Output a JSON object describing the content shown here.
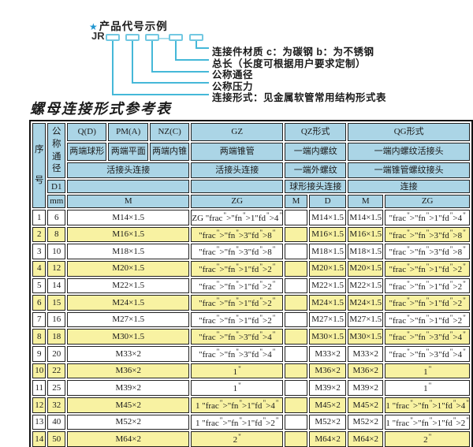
{
  "diagram": {
    "star": "★",
    "title": "产品代号示例",
    "prefix": "JR",
    "dash": "—",
    "labels": [
      "连接件材质  c：为碳钢  b：为不锈钢",
      "总长（长度可根据用户要求定制）",
      "公称通径",
      "公称压力",
      "连接形式：见金属软管常用结构形式表"
    ]
  },
  "table": {
    "title": "螺母连接形式参考表",
    "header": {
      "serial": "序号",
      "nominal_diameter": "公称通径",
      "d1": "D1",
      "mm": "mm",
      "groups": [
        "Q(D)",
        "PM(A)",
        "NZ(C)",
        "GZ",
        "QZ形式",
        "QG形式"
      ],
      "row2": [
        "两端球形",
        "两端平面",
        "两端内锥",
        "两端锥管",
        "一端内螺纹",
        "一端内螺纹活接头"
      ],
      "row3": [
        "活接头连接",
        "活接头连接",
        "一端外螺纹",
        "一端锥管螺纹接头"
      ],
      "row4": [
        "球形接头连接",
        "连接"
      ],
      "units": [
        "M",
        "ZG",
        "M",
        "D",
        "M",
        "ZG"
      ]
    },
    "rows": [
      {
        "no": "1",
        "dn": "6",
        "m": "M14×1.5",
        "zg": "ZG 1/4\"",
        "qz_m": "",
        "qz_d": "M14×1.5",
        "qg_m": "M14×1.5",
        "qg_zg": "1/4\""
      },
      {
        "no": "2",
        "dn": "8",
        "m": "M16×1.5",
        "zg": "3/8\"",
        "qz_m": "",
        "qz_d": "M16×1.5",
        "qg_m": "M16×1.5",
        "qg_zg": "3/8\""
      },
      {
        "no": "3",
        "dn": "10",
        "m": "M18×1.5",
        "zg": "3/8\"",
        "qz_m": "",
        "qz_d": "M18×1.5",
        "qg_m": "M18×1.5",
        "qg_zg": "3/8\""
      },
      {
        "no": "4",
        "dn": "12",
        "m": "M20×1.5",
        "zg": "1/2\"",
        "qz_m": "",
        "qz_d": "M20×1.5",
        "qg_m": "M20×1.5",
        "qg_zg": "1/2\""
      },
      {
        "no": "5",
        "dn": "14",
        "m": "M22×1.5",
        "zg": "1/2\"",
        "qz_m": "",
        "qz_d": "M22×1.5",
        "qg_m": "M22×1.5",
        "qg_zg": "1/2\""
      },
      {
        "no": "6",
        "dn": "15",
        "m": "M24×1.5",
        "zg": "1/2\"",
        "qz_m": "",
        "qz_d": "M24×1.5",
        "qg_m": "M24×1.5",
        "qg_zg": "1/2\""
      },
      {
        "no": "7",
        "dn": "16",
        "m": "M27×1.5",
        "zg": "1/2\"",
        "qz_m": "",
        "qz_d": "M27×1.5",
        "qg_m": "M27×1.5",
        "qg_zg": "1/2\""
      },
      {
        "no": "8",
        "dn": "18",
        "m": "M30×1.5",
        "zg": "3/4\"",
        "qz_m": "",
        "qz_d": "M30×1.5",
        "qg_m": "M30×1.5",
        "qg_zg": "3/4\""
      },
      {
        "no": "9",
        "dn": "20",
        "m": "M33×2",
        "zg": "3/4\"",
        "qz_m": "",
        "qz_d": "M33×2",
        "qg_m": "M33×2",
        "qg_zg": "3/4\""
      },
      {
        "no": "10",
        "dn": "22",
        "m": "M36×2",
        "zg": "1\"",
        "qz_m": "",
        "qz_d": "M36×2",
        "qg_m": "M36×2",
        "qg_zg": "1\""
      },
      {
        "no": "11",
        "dn": "25",
        "m": "M39×2",
        "zg": "1\"",
        "qz_m": "",
        "qz_d": "M39×2",
        "qg_m": "M39×2",
        "qg_zg": "1\""
      },
      {
        "no": "12",
        "dn": "32",
        "m": "M45×2",
        "zg": "1 1/4\"",
        "qz_m": "",
        "qz_d": "M45×2",
        "qg_m": "M45×2",
        "qg_zg": "1 1/4\""
      },
      {
        "no": "13",
        "dn": "40",
        "m": "M52×2",
        "zg": "1 1/2\"",
        "qz_m": "",
        "qz_d": "M52×2",
        "qg_m": "M52×2",
        "qg_zg": "1 1/2\""
      },
      {
        "no": "14",
        "dn": "50",
        "m": "M64×2",
        "zg": "2\"",
        "qz_m": "",
        "qz_d": "M64×2",
        "qg_m": "M64×2",
        "qg_zg": "2\""
      }
    ]
  },
  "colors": {
    "header_bg": "#abd5e6",
    "row_alt": "#f8f2a2",
    "diagram_line": "#45b8d8",
    "box_border": "#72c8e2",
    "star_blue": "#2196d0",
    "cell_border": "#222222"
  }
}
